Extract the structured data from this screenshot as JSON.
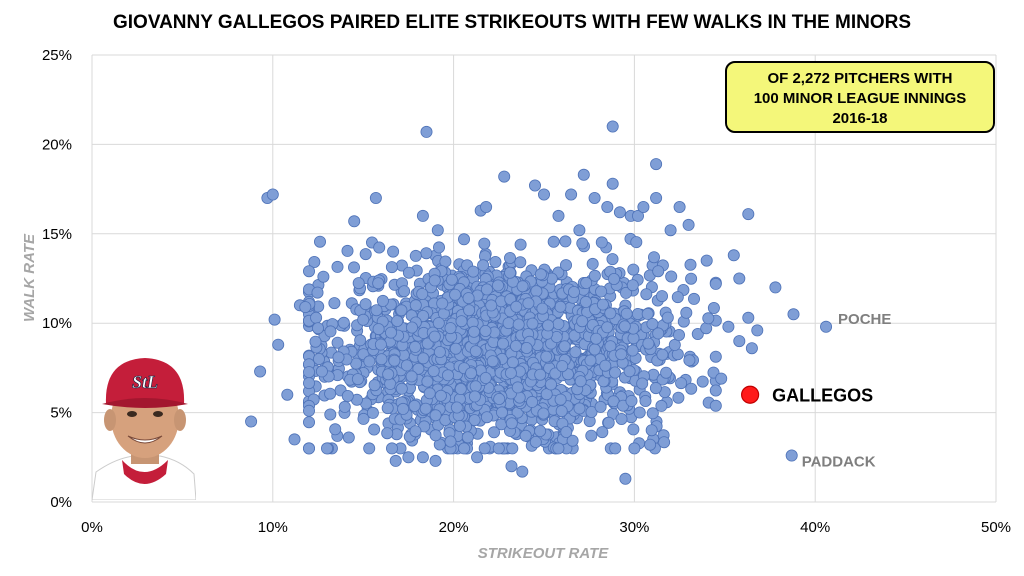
{
  "title": "GIOVANNY GALLEGOS PAIRED ELITE STRIKEOUTS WITH FEW WALKS IN THE MINORS",
  "colors": {
    "point_fill": "#7f9ed6",
    "point_stroke": "#4f73b8",
    "highlight_fill": "#ff1a1a",
    "highlight_stroke": "#c00000",
    "note_fill": "#f4f77a",
    "grid": "#d9d9d9",
    "annotation_gray": "#7f7f7f",
    "axis_label_color": "#a6a6a6"
  },
  "note_box": {
    "lines": [
      "OF 2,272 PITCHERS WITH",
      "100 MINOR LEAGUE INNINGS",
      "2016-18"
    ]
  },
  "player_photo": {
    "icon": "player-headshot-icon",
    "cap_logo_text": "StL"
  },
  "chart_data": {
    "type": "scatter",
    "title": "GIOVANNY GALLEGOS PAIRED ELITE STRIKEOUTS WITH FEW WALKS IN THE MINORS",
    "xlabel": "STRIKEOUT RATE",
    "ylabel": "WALK RATE",
    "xlim": [
      0,
      0.5
    ],
    "ylim": [
      0,
      0.25
    ],
    "x_ticks": [
      0,
      0.1,
      0.2,
      0.3,
      0.4,
      0.5
    ],
    "x_tick_labels": [
      "0%",
      "10%",
      "20%",
      "30%",
      "40%",
      "50%"
    ],
    "y_ticks": [
      0,
      0.05,
      0.1,
      0.15,
      0.2,
      0.25
    ],
    "y_tick_labels": [
      "0%",
      "5%",
      "10%",
      "15%",
      "20%",
      "25%"
    ],
    "grid": true,
    "legend": "none",
    "cluster": {
      "count": 2272,
      "center_x": 0.225,
      "center_y": 0.085,
      "sd_x": 0.045,
      "sd_y": 0.024
    },
    "outliers": [
      [
        0.088,
        0.045
      ],
      [
        0.093,
        0.073
      ],
      [
        0.097,
        0.17
      ],
      [
        0.1,
        0.172
      ],
      [
        0.101,
        0.102
      ],
      [
        0.103,
        0.088
      ],
      [
        0.108,
        0.06
      ],
      [
        0.112,
        0.035
      ],
      [
        0.115,
        0.11
      ],
      [
        0.118,
        0.109
      ],
      [
        0.13,
        0.03
      ],
      [
        0.128,
        0.126
      ],
      [
        0.145,
        0.157
      ],
      [
        0.157,
        0.17
      ],
      [
        0.168,
        0.023
      ],
      [
        0.175,
        0.025
      ],
      [
        0.183,
        0.025
      ],
      [
        0.183,
        0.16
      ],
      [
        0.185,
        0.207
      ],
      [
        0.19,
        0.023
      ],
      [
        0.213,
        0.025
      ],
      [
        0.215,
        0.163
      ],
      [
        0.218,
        0.165
      ],
      [
        0.228,
        0.182
      ],
      [
        0.225,
        0.03
      ],
      [
        0.232,
        0.02
      ],
      [
        0.238,
        0.017
      ],
      [
        0.245,
        0.177
      ],
      [
        0.25,
        0.172
      ],
      [
        0.258,
        0.16
      ],
      [
        0.265,
        0.172
      ],
      [
        0.272,
        0.183
      ],
      [
        0.278,
        0.17
      ],
      [
        0.285,
        0.165
      ],
      [
        0.288,
        0.21
      ],
      [
        0.288,
        0.178
      ],
      [
        0.292,
        0.162
      ],
      [
        0.295,
        0.013
      ],
      [
        0.298,
        0.16
      ],
      [
        0.3,
        0.03
      ],
      [
        0.302,
        0.16
      ],
      [
        0.305,
        0.165
      ],
      [
        0.312,
        0.189
      ],
      [
        0.312,
        0.17
      ],
      [
        0.32,
        0.152
      ],
      [
        0.325,
        0.165
      ],
      [
        0.33,
        0.155
      ],
      [
        0.34,
        0.135
      ],
      [
        0.345,
        0.122
      ],
      [
        0.348,
        0.069
      ],
      [
        0.352,
        0.098
      ],
      [
        0.355,
        0.138
      ],
      [
        0.358,
        0.125
      ],
      [
        0.358,
        0.09
      ],
      [
        0.363,
        0.103
      ],
      [
        0.363,
        0.161
      ],
      [
        0.365,
        0.086
      ],
      [
        0.368,
        0.096
      ],
      [
        0.378,
        0.12
      ],
      [
        0.388,
        0.105
      ]
    ],
    "labeled_points": [
      {
        "name": "POCHE",
        "x": 0.406,
        "y": 0.098,
        "highlight": false
      },
      {
        "name": "GALLEGOS",
        "x": 0.364,
        "y": 0.06,
        "highlight": true
      },
      {
        "name": "PADDACK",
        "x": 0.387,
        "y": 0.026,
        "highlight": false
      }
    ]
  }
}
